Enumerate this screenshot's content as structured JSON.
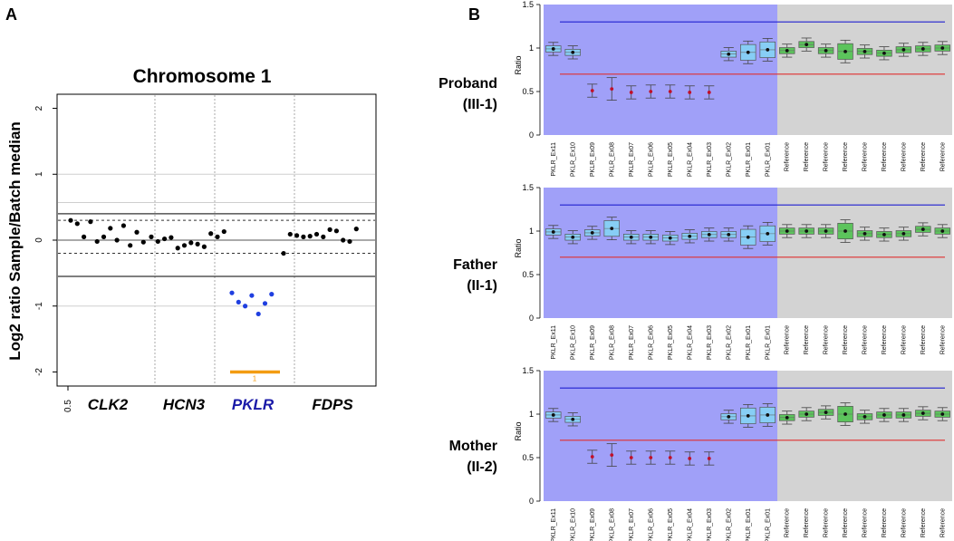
{
  "panel_a": {
    "letter": "A",
    "title": "Chromosome 1",
    "ylabel": "Log2 ratio Sample/Batch median",
    "x_tick_label": "0.5",
    "bar_label": "1",
    "genes": [
      {
        "name": "CLK2",
        "color": "#000000"
      },
      {
        "name": "HCN3",
        "color": "#000000"
      },
      {
        "name": "PKLR",
        "color": "#1a1aa8"
      },
      {
        "name": "FDPS",
        "color": "#000000"
      }
    ],
    "colors": {
      "normal_points": "#000000",
      "deleted_points": "#1f3fe0",
      "segment_bar": "#f39c12"
    }
  },
  "panel_b": {
    "letter": "B",
    "ylabel": "Ratio",
    "rows": [
      {
        "name": "Proband",
        "id": "(III-1)"
      },
      {
        "name": "Father",
        "id": "(II-1)"
      },
      {
        "name": "Mother",
        "id": "(II-2)"
      }
    ],
    "exon_labels": [
      "PKLR_Ex11",
      "PKLR_Ex10",
      "PKLR_Ex09",
      "PKLR_Ex08",
      "PKLR_Ex07",
      "PKLR_Ex06",
      "PKLR_Ex05",
      "PKLR_Ex04",
      "PKLR_Ex03",
      "PKLR_Ex02",
      "PKLR_Ex01",
      "PKLR_Ex01"
    ],
    "reference_label": "Reference",
    "reference_count": 9,
    "colors": {
      "target_bg": "#a0a0f8",
      "reference_bg": "#d3d3d3",
      "target_box": "#87cef5",
      "reference_box": "#5cc45c",
      "upper_line": "#2020d0",
      "lower_line": "#e03030",
      "marker": "#c0102a"
    }
  },
  "chart_data": [
    {
      "type": "scatter",
      "title": "Chromosome 1",
      "xlabel": "",
      "ylabel": "Log2 ratio Sample/Batch median",
      "ylim": [
        -2.2,
        2.2
      ],
      "yticks": [
        "-2",
        "-1",
        "0",
        "1",
        "2"
      ],
      "x_tick_labels": [
        "0.5"
      ],
      "gene_regions": [
        "CLK2",
        "HCN3",
        "PKLR",
        "FDPS"
      ],
      "reference_lines": {
        "solid": [
          0.4,
          -0.55
        ],
        "dashed": [
          0.3,
          -0.2
        ],
        "grid": [
          1,
          0.57,
          -1
        ]
      },
      "series": [
        {
          "name": "CLK2",
          "values": [
            0.3,
            0.25,
            0.05,
            0.28,
            -0.02,
            0.05,
            0.18,
            0.0,
            0.22,
            -0.08,
            0.12,
            -0.03
          ]
        },
        {
          "name": "HCN3",
          "values": [
            0.05,
            -0.02,
            0.02,
            0.04,
            -0.12,
            -0.08,
            -0.04,
            -0.06,
            -0.1,
            0.1,
            0.05,
            0.13
          ]
        },
        {
          "name": "PKLR",
          "values": [
            -0.8,
            -0.94,
            -1.0,
            -0.84,
            -1.12,
            -0.96,
            -0.82
          ]
        },
        {
          "name": "FDPS",
          "values": [
            -0.2,
            0.09,
            0.07,
            0.05,
            0.06,
            0.09,
            0.05,
            0.16,
            0.14,
            0.0,
            -0.02,
            0.17
          ]
        }
      ],
      "segment": {
        "label": "1",
        "value": -2.0
      }
    },
    {
      "type": "box",
      "title": "Proband (III-1)",
      "ylabel": "Ratio",
      "ylim": [
        0,
        1.5
      ],
      "yticks": [
        "0",
        "0.5",
        "1",
        "1.5"
      ],
      "categories": [
        "PKLR_Ex11",
        "PKLR_Ex10",
        "PKLR_Ex09",
        "PKLR_Ex08",
        "PKLR_Ex07",
        "PKLR_Ex06",
        "PKLR_Ex05",
        "PKLR_Ex04",
        "PKLR_Ex03",
        "PKLR_Ex02",
        "PKLR_Ex01",
        "PKLR_Ex01",
        "Reference",
        "Reference",
        "Reference",
        "Reference",
        "Reference",
        "Reference",
        "Reference",
        "Reference",
        "Reference"
      ],
      "values": [
        0.99,
        0.95,
        0.51,
        0.53,
        0.49,
        0.5,
        0.5,
        0.49,
        0.49,
        0.93,
        0.95,
        0.98,
        0.97,
        1.04,
        0.97,
        0.96,
        0.96,
        0.94,
        0.98,
        0.99,
        1.0
      ],
      "thresholds": {
        "upper": 1.3,
        "lower": 0.7
      }
    },
    {
      "type": "box",
      "title": "Father (II-1)",
      "ylabel": "Ratio",
      "ylim": [
        0,
        1.5
      ],
      "yticks": [
        "0",
        "0.5",
        "1",
        "1.5"
      ],
      "categories": [
        "PKLR_Ex11",
        "PKLR_Ex10",
        "PKLR_Ex09",
        "PKLR_Ex08",
        "PKLR_Ex07",
        "PKLR_Ex06",
        "PKLR_Ex05",
        "PKLR_Ex04",
        "PKLR_Ex03",
        "PKLR_Ex02",
        "PKLR_Ex01",
        "PKLR_Ex01",
        "Reference",
        "Reference",
        "Reference",
        "Reference",
        "Reference",
        "Reference",
        "Reference",
        "Reference",
        "Reference"
      ],
      "values": [
        0.99,
        0.93,
        0.98,
        1.03,
        0.93,
        0.93,
        0.92,
        0.94,
        0.96,
        0.96,
        0.93,
        0.97,
        1.0,
        1.0,
        1.0,
        1.0,
        0.97,
        0.96,
        0.97,
        1.02,
        1.0
      ],
      "thresholds": {
        "upper": 1.3,
        "lower": 0.7
      }
    },
    {
      "type": "box",
      "title": "Mother (II-2)",
      "ylabel": "Ratio",
      "ylim": [
        0,
        1.5
      ],
      "yticks": [
        "0",
        "0.5",
        "1",
        "1.5"
      ],
      "categories": [
        "PKLR_Ex11",
        "PKLR_Ex10",
        "PKLR_Ex09",
        "PKLR_Ex08",
        "PKLR_Ex07",
        "PKLR_Ex06",
        "PKLR_Ex05",
        "PKLR_Ex04",
        "PKLR_Ex03",
        "PKLR_Ex02",
        "PKLR_Ex01",
        "PKLR_Ex01",
        "Reference",
        "Reference",
        "Reference",
        "Reference",
        "Reference",
        "Reference",
        "Reference",
        "Reference",
        "Reference"
      ],
      "values": [
        0.99,
        0.94,
        0.51,
        0.53,
        0.5,
        0.5,
        0.5,
        0.49,
        0.49,
        0.97,
        0.98,
        0.99,
        0.96,
        1.0,
        1.02,
        1.0,
        0.97,
        0.99,
        0.99,
        1.01,
        1.0
      ],
      "thresholds": {
        "upper": 1.3,
        "lower": 0.7
      }
    }
  ]
}
